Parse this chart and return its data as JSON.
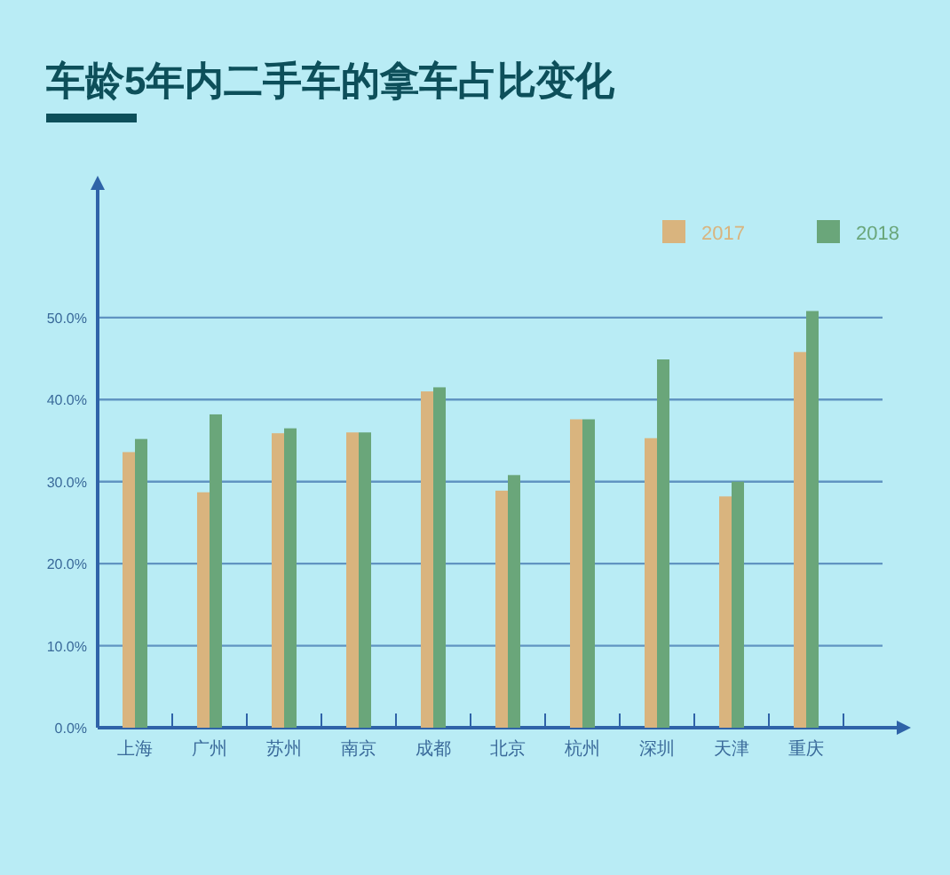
{
  "chart_data": {
    "type": "bar",
    "title": "车龄5年内二手车的拿车占比变化",
    "categories": [
      "上海",
      "广州",
      "苏州",
      "南京",
      "成都",
      "北京",
      "杭州",
      "深圳",
      "天津",
      "重庆"
    ],
    "series": [
      {
        "name": "2017",
        "color": "#d9b47e",
        "values": [
          33.6,
          28.7,
          35.9,
          36.0,
          41.0,
          28.9,
          37.6,
          35.3,
          28.2,
          45.8
        ]
      },
      {
        "name": "2018",
        "color": "#6aa67a",
        "values": [
          35.2,
          38.2,
          36.5,
          36.0,
          41.5,
          30.8,
          37.6,
          44.9,
          30.0,
          50.8
        ]
      }
    ],
    "ylim": [
      0,
      66
    ],
    "yticks": [
      {
        "value": 0,
        "label": "0.0%"
      },
      {
        "value": 10,
        "label": "10.0%"
      },
      {
        "value": 20,
        "label": "20.0%"
      },
      {
        "value": 30,
        "label": "30.0%"
      },
      {
        "value": 40,
        "label": "40.0%"
      },
      {
        "value": 50,
        "label": "50.0%"
      }
    ],
    "grid": "y",
    "legend": "top right"
  }
}
